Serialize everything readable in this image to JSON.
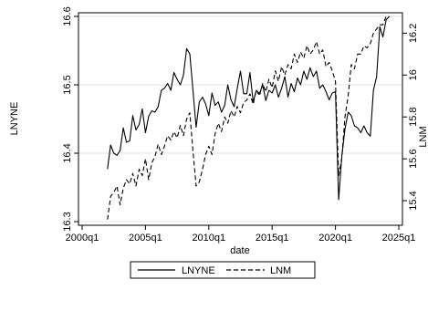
{
  "chart_data": {
    "type": "line",
    "xlabel": "date",
    "x_ticks": [
      "2000q1",
      "2005q1",
      "2010q1",
      "2015q1",
      "2020q1",
      "2025q1"
    ],
    "xlim": [
      "2000q1",
      "2025q1"
    ],
    "left_axis": {
      "label": "LNYNE",
      "ticks": [
        "16.3",
        "16.4",
        "16.5",
        "16.6"
      ],
      "ylim": [
        16.3,
        16.6
      ]
    },
    "right_axis": {
      "label": "LNM",
      "ticks": [
        "15.4",
        "15.6",
        "15.8",
        "16",
        "16.2"
      ],
      "ylim": [
        15.3,
        16.28
      ]
    },
    "grid": "horizontal at left-axis ticks",
    "legend": {
      "position": "bottom",
      "entries": [
        "LNYNE",
        "LNM"
      ]
    },
    "series": [
      {
        "name": "LNYNE",
        "axis": "left",
        "style": "solid",
        "x": [
          "2002q1",
          "2002q2",
          "2002q3",
          "2002q4",
          "2003q1",
          "2003q2",
          "2003q3",
          "2003q4",
          "2004q1",
          "2004q2",
          "2004q3",
          "2004q4",
          "2005q1",
          "2005q2",
          "2005q3",
          "2005q4",
          "2006q1",
          "2006q2",
          "2006q3",
          "2006q4",
          "2007q1",
          "2007q2",
          "2007q3",
          "2007q4",
          "2008q1",
          "2008q2",
          "2008q3",
          "2008q4",
          "2009q1",
          "2009q2",
          "2009q3",
          "2009q4",
          "2010q1",
          "2010q2",
          "2010q3",
          "2010q4",
          "2011q1",
          "2011q2",
          "2011q3",
          "2011q4",
          "2012q1",
          "2012q2",
          "2012q3",
          "2012q4",
          "2013q1",
          "2013q2",
          "2013q3",
          "2013q4",
          "2014q1",
          "2014q2",
          "2014q3",
          "2014q4",
          "2015q1",
          "2015q2",
          "2015q3",
          "2015q4",
          "2016q1",
          "2016q2",
          "2016q3",
          "2016q4",
          "2017q1",
          "2017q2",
          "2017q3",
          "2017q4",
          "2018q1",
          "2018q2",
          "2018q3",
          "2018q4",
          "2019q1",
          "2019q2",
          "2019q3",
          "2019q4",
          "2020q1",
          "2020q2",
          "2020q3",
          "2020q4",
          "2021q1",
          "2021q2",
          "2021q3",
          "2021q4",
          "2022q1",
          "2022q2",
          "2022q3",
          "2022q4",
          "2023q1",
          "2023q2",
          "2023q3",
          "2023q4",
          "2024q1",
          "2024q2"
        ],
        "values": [
          16.377,
          16.412,
          16.4,
          16.397,
          16.404,
          16.437,
          16.416,
          16.418,
          16.455,
          16.434,
          16.442,
          16.465,
          16.43,
          16.454,
          16.462,
          16.46,
          16.468,
          16.492,
          16.495,
          16.502,
          16.492,
          16.518,
          16.508,
          16.5,
          16.514,
          16.553,
          16.545,
          16.493,
          16.438,
          16.475,
          16.482,
          16.472,
          16.455,
          16.488,
          16.47,
          16.475,
          16.46,
          16.47,
          16.5,
          16.478,
          16.468,
          16.495,
          16.52,
          16.487,
          16.487,
          16.518,
          16.475,
          16.492,
          16.487,
          16.5,
          16.477,
          16.492,
          16.488,
          16.5,
          16.482,
          16.495,
          16.512,
          16.482,
          16.502,
          16.49,
          16.51,
          16.5,
          16.52,
          16.508,
          16.525,
          16.512,
          16.52,
          16.495,
          16.5,
          16.49,
          16.478,
          16.488,
          16.49,
          16.332,
          16.395,
          16.435,
          16.46,
          16.455,
          16.44,
          16.437,
          16.43,
          16.44,
          16.43,
          16.425,
          16.492,
          16.512,
          16.585,
          16.57,
          16.595,
          16.6
        ]
      },
      {
        "name": "LNM",
        "axis": "right",
        "style": "dashed",
        "x": [
          "2002q1",
          "2002q2",
          "2002q3",
          "2002q4",
          "2003q1",
          "2003q2",
          "2003q3",
          "2003q4",
          "2004q1",
          "2004q2",
          "2004q3",
          "2004q4",
          "2005q1",
          "2005q2",
          "2005q3",
          "2005q4",
          "2006q1",
          "2006q2",
          "2006q3",
          "2006q4",
          "2007q1",
          "2007q2",
          "2007q3",
          "2007q4",
          "2008q1",
          "2008q2",
          "2008q3",
          "2008q4",
          "2009q1",
          "2009q2",
          "2009q3",
          "2009q4",
          "2010q1",
          "2010q2",
          "2010q3",
          "2010q4",
          "2011q1",
          "2011q2",
          "2011q3",
          "2011q4",
          "2012q1",
          "2012q2",
          "2012q3",
          "2012q4",
          "2013q1",
          "2013q2",
          "2013q3",
          "2013q4",
          "2014q1",
          "2014q2",
          "2014q3",
          "2014q4",
          "2015q1",
          "2015q2",
          "2015q3",
          "2015q4",
          "2016q1",
          "2016q2",
          "2016q3",
          "2016q4",
          "2017q1",
          "2017q2",
          "2017q3",
          "2017q4",
          "2018q1",
          "2018q2",
          "2018q3",
          "2018q4",
          "2019q1",
          "2019q2",
          "2019q3",
          "2019q4",
          "2020q1",
          "2020q2",
          "2020q3",
          "2020q4",
          "2021q1",
          "2021q2",
          "2021q3",
          "2021q4",
          "2022q1",
          "2022q2",
          "2022q3",
          "2022q4",
          "2023q1",
          "2023q2",
          "2023q3",
          "2023q4",
          "2024q1",
          "2024q2"
        ],
        "values": [
          15.31,
          15.42,
          15.44,
          15.47,
          15.38,
          15.46,
          15.5,
          15.48,
          15.53,
          15.47,
          15.55,
          15.52,
          15.6,
          15.5,
          15.58,
          15.61,
          15.67,
          15.62,
          15.66,
          15.71,
          15.69,
          15.73,
          15.7,
          15.76,
          15.71,
          15.79,
          15.82,
          15.64,
          15.47,
          15.49,
          15.55,
          15.62,
          15.66,
          15.62,
          15.72,
          15.77,
          15.73,
          15.8,
          15.77,
          15.83,
          15.8,
          15.85,
          15.82,
          15.87,
          15.88,
          15.91,
          15.86,
          15.93,
          15.9,
          15.96,
          15.92,
          15.98,
          15.94,
          16.02,
          15.97,
          16.04,
          16.0,
          16.05,
          16.03,
          16.1,
          16.06,
          16.11,
          16.08,
          16.14,
          16.1,
          16.12,
          16.16,
          16.1,
          16.12,
          16.04,
          16.06,
          16.02,
          15.97,
          15.52,
          15.6,
          15.8,
          15.9,
          16.05,
          16.03,
          16.1,
          16.1,
          16.14,
          16.13,
          16.15,
          16.2,
          16.22,
          16.24,
          16.24,
          16.28,
          16.28
        ]
      }
    ]
  }
}
